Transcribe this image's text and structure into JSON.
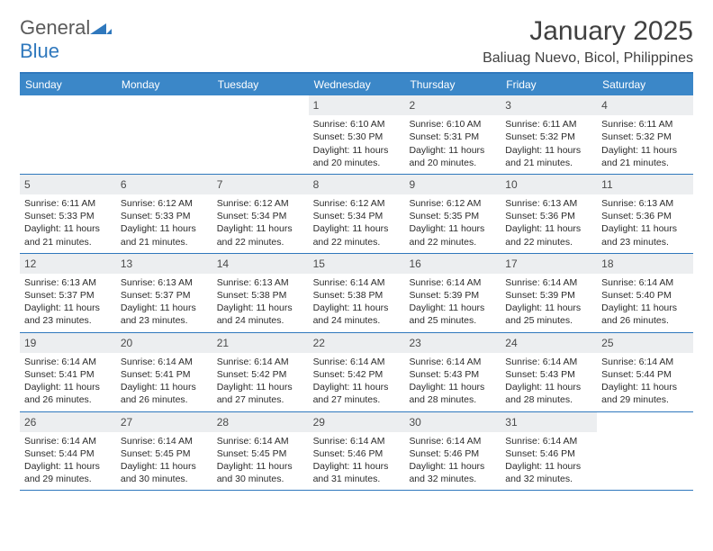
{
  "brand": {
    "word1": "General",
    "word2": "Blue"
  },
  "title": "January 2025",
  "location": "Baliuag Nuevo, Bicol, Philippines",
  "colors": {
    "header_bg": "#3b87c8",
    "border": "#2f78bd",
    "daynum_bg": "#eceef0",
    "text": "#303030",
    "brand_blue": "#2f78bd",
    "brand_gray": "#5a5a5a",
    "page_bg": "#ffffff"
  },
  "typography": {
    "title_fontsize": 30,
    "location_fontsize": 16,
    "dow_fontsize": 12,
    "daynum_fontsize": 12,
    "body_fontsize": 10.5
  },
  "days_of_week": [
    "Sunday",
    "Monday",
    "Tuesday",
    "Wednesday",
    "Thursday",
    "Friday",
    "Saturday"
  ],
  "weeks": [
    [
      {
        "n": "",
        "empty": true
      },
      {
        "n": "",
        "empty": true
      },
      {
        "n": "",
        "empty": true
      },
      {
        "n": "1",
        "sunrise": "Sunrise: 6:10 AM",
        "sunset": "Sunset: 5:30 PM",
        "d1": "Daylight: 11 hours",
        "d2": "and 20 minutes."
      },
      {
        "n": "2",
        "sunrise": "Sunrise: 6:10 AM",
        "sunset": "Sunset: 5:31 PM",
        "d1": "Daylight: 11 hours",
        "d2": "and 20 minutes."
      },
      {
        "n": "3",
        "sunrise": "Sunrise: 6:11 AM",
        "sunset": "Sunset: 5:32 PM",
        "d1": "Daylight: 11 hours",
        "d2": "and 21 minutes."
      },
      {
        "n": "4",
        "sunrise": "Sunrise: 6:11 AM",
        "sunset": "Sunset: 5:32 PM",
        "d1": "Daylight: 11 hours",
        "d2": "and 21 minutes."
      }
    ],
    [
      {
        "n": "5",
        "sunrise": "Sunrise: 6:11 AM",
        "sunset": "Sunset: 5:33 PM",
        "d1": "Daylight: 11 hours",
        "d2": "and 21 minutes."
      },
      {
        "n": "6",
        "sunrise": "Sunrise: 6:12 AM",
        "sunset": "Sunset: 5:33 PM",
        "d1": "Daylight: 11 hours",
        "d2": "and 21 minutes."
      },
      {
        "n": "7",
        "sunrise": "Sunrise: 6:12 AM",
        "sunset": "Sunset: 5:34 PM",
        "d1": "Daylight: 11 hours",
        "d2": "and 22 minutes."
      },
      {
        "n": "8",
        "sunrise": "Sunrise: 6:12 AM",
        "sunset": "Sunset: 5:34 PM",
        "d1": "Daylight: 11 hours",
        "d2": "and 22 minutes."
      },
      {
        "n": "9",
        "sunrise": "Sunrise: 6:12 AM",
        "sunset": "Sunset: 5:35 PM",
        "d1": "Daylight: 11 hours",
        "d2": "and 22 minutes."
      },
      {
        "n": "10",
        "sunrise": "Sunrise: 6:13 AM",
        "sunset": "Sunset: 5:36 PM",
        "d1": "Daylight: 11 hours",
        "d2": "and 22 minutes."
      },
      {
        "n": "11",
        "sunrise": "Sunrise: 6:13 AM",
        "sunset": "Sunset: 5:36 PM",
        "d1": "Daylight: 11 hours",
        "d2": "and 23 minutes."
      }
    ],
    [
      {
        "n": "12",
        "sunrise": "Sunrise: 6:13 AM",
        "sunset": "Sunset: 5:37 PM",
        "d1": "Daylight: 11 hours",
        "d2": "and 23 minutes."
      },
      {
        "n": "13",
        "sunrise": "Sunrise: 6:13 AM",
        "sunset": "Sunset: 5:37 PM",
        "d1": "Daylight: 11 hours",
        "d2": "and 23 minutes."
      },
      {
        "n": "14",
        "sunrise": "Sunrise: 6:13 AM",
        "sunset": "Sunset: 5:38 PM",
        "d1": "Daylight: 11 hours",
        "d2": "and 24 minutes."
      },
      {
        "n": "15",
        "sunrise": "Sunrise: 6:14 AM",
        "sunset": "Sunset: 5:38 PM",
        "d1": "Daylight: 11 hours",
        "d2": "and 24 minutes."
      },
      {
        "n": "16",
        "sunrise": "Sunrise: 6:14 AM",
        "sunset": "Sunset: 5:39 PM",
        "d1": "Daylight: 11 hours",
        "d2": "and 25 minutes."
      },
      {
        "n": "17",
        "sunrise": "Sunrise: 6:14 AM",
        "sunset": "Sunset: 5:39 PM",
        "d1": "Daylight: 11 hours",
        "d2": "and 25 minutes."
      },
      {
        "n": "18",
        "sunrise": "Sunrise: 6:14 AM",
        "sunset": "Sunset: 5:40 PM",
        "d1": "Daylight: 11 hours",
        "d2": "and 26 minutes."
      }
    ],
    [
      {
        "n": "19",
        "sunrise": "Sunrise: 6:14 AM",
        "sunset": "Sunset: 5:41 PM",
        "d1": "Daylight: 11 hours",
        "d2": "and 26 minutes."
      },
      {
        "n": "20",
        "sunrise": "Sunrise: 6:14 AM",
        "sunset": "Sunset: 5:41 PM",
        "d1": "Daylight: 11 hours",
        "d2": "and 26 minutes."
      },
      {
        "n": "21",
        "sunrise": "Sunrise: 6:14 AM",
        "sunset": "Sunset: 5:42 PM",
        "d1": "Daylight: 11 hours",
        "d2": "and 27 minutes."
      },
      {
        "n": "22",
        "sunrise": "Sunrise: 6:14 AM",
        "sunset": "Sunset: 5:42 PM",
        "d1": "Daylight: 11 hours",
        "d2": "and 27 minutes."
      },
      {
        "n": "23",
        "sunrise": "Sunrise: 6:14 AM",
        "sunset": "Sunset: 5:43 PM",
        "d1": "Daylight: 11 hours",
        "d2": "and 28 minutes."
      },
      {
        "n": "24",
        "sunrise": "Sunrise: 6:14 AM",
        "sunset": "Sunset: 5:43 PM",
        "d1": "Daylight: 11 hours",
        "d2": "and 28 minutes."
      },
      {
        "n": "25",
        "sunrise": "Sunrise: 6:14 AM",
        "sunset": "Sunset: 5:44 PM",
        "d1": "Daylight: 11 hours",
        "d2": "and 29 minutes."
      }
    ],
    [
      {
        "n": "26",
        "sunrise": "Sunrise: 6:14 AM",
        "sunset": "Sunset: 5:44 PM",
        "d1": "Daylight: 11 hours",
        "d2": "and 29 minutes."
      },
      {
        "n": "27",
        "sunrise": "Sunrise: 6:14 AM",
        "sunset": "Sunset: 5:45 PM",
        "d1": "Daylight: 11 hours",
        "d2": "and 30 minutes."
      },
      {
        "n": "28",
        "sunrise": "Sunrise: 6:14 AM",
        "sunset": "Sunset: 5:45 PM",
        "d1": "Daylight: 11 hours",
        "d2": "and 30 minutes."
      },
      {
        "n": "29",
        "sunrise": "Sunrise: 6:14 AM",
        "sunset": "Sunset: 5:46 PM",
        "d1": "Daylight: 11 hours",
        "d2": "and 31 minutes."
      },
      {
        "n": "30",
        "sunrise": "Sunrise: 6:14 AM",
        "sunset": "Sunset: 5:46 PM",
        "d1": "Daylight: 11 hours",
        "d2": "and 32 minutes."
      },
      {
        "n": "31",
        "sunrise": "Sunrise: 6:14 AM",
        "sunset": "Sunset: 5:46 PM",
        "d1": "Daylight: 11 hours",
        "d2": "and 32 minutes."
      },
      {
        "n": "",
        "empty": true
      }
    ]
  ]
}
